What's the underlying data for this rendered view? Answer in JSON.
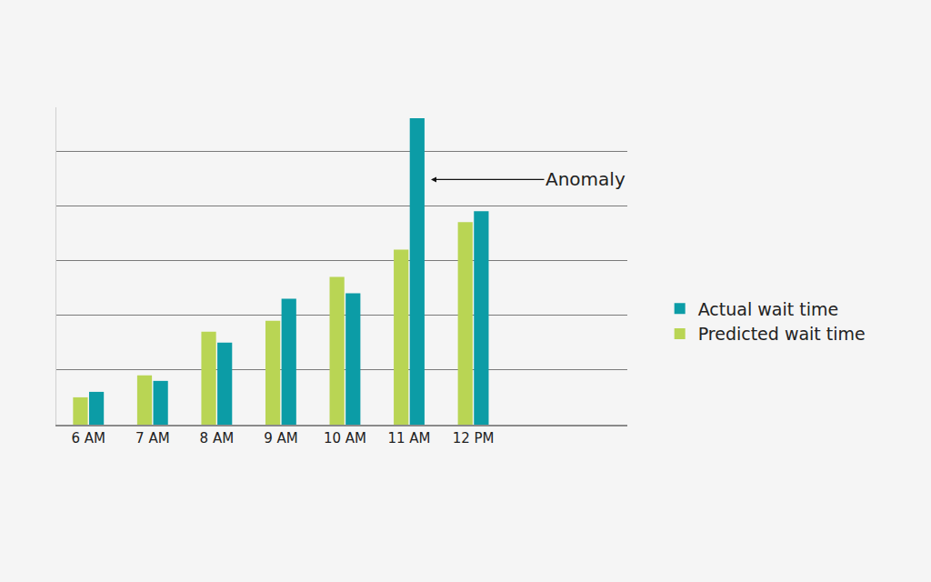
{
  "chart_data": {
    "type": "bar",
    "categories": [
      "6 AM",
      "7 AM",
      "8 AM",
      "9 AM",
      "10 AM",
      "11 AM",
      "12 PM"
    ],
    "series": [
      {
        "name": "Predicted wait time",
        "color": "#b9d554",
        "values": [
          0.5,
          0.9,
          1.7,
          1.9,
          2.7,
          3.2,
          3.7
        ]
      },
      {
        "name": "Actual wait time",
        "color": "#0c9ca6",
        "values": [
          0.6,
          0.8,
          1.5,
          2.3,
          2.4,
          5.6,
          3.9
        ]
      }
    ],
    "ylim": [
      0,
      5.8
    ],
    "yticks": [
      0,
      1,
      2,
      3,
      4,
      5
    ],
    "grid": true,
    "tick_labels": "x",
    "legend": "right",
    "annotations": [
      {
        "text": "Anomaly",
        "category": "11 AM",
        "series": "Actual wait time"
      }
    ]
  }
}
